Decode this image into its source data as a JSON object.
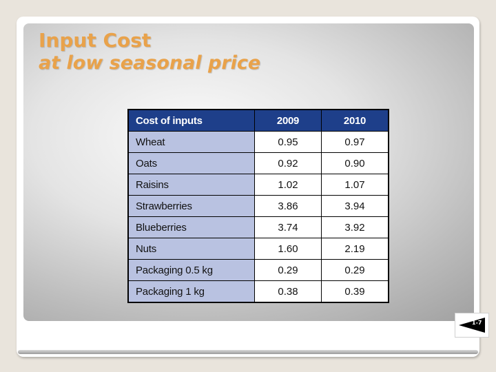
{
  "slide": {
    "title_line1": "Input Cost",
    "title_line2": "at low seasonal price",
    "page_number": "1-7"
  },
  "table": {
    "headers": [
      "Cost of inputs",
      "2009",
      "2010"
    ],
    "rows": [
      {
        "item": "Wheat",
        "y2009": "0.95",
        "y2010": "0.97"
      },
      {
        "item": "Oats",
        "y2009": "0.92",
        "y2010": "0.90"
      },
      {
        "item": "Raisins",
        "y2009": "1.02",
        "y2010": "1.07"
      },
      {
        "item": "Strawberries",
        "y2009": "3.86",
        "y2010": "3.94"
      },
      {
        "item": "Blueberries",
        "y2009": "3.74",
        "y2010": "3.92"
      },
      {
        "item": "Nuts",
        "y2009": "1.60",
        "y2010": "2.19"
      },
      {
        "item": "Packaging 0.5 kg",
        "y2009": "0.29",
        "y2010": "0.29"
      },
      {
        "item": "Packaging 1 kg",
        "y2009": "0.38",
        "y2010": "0.39"
      }
    ]
  },
  "colors": {
    "title": "#e9a24a",
    "header_bg": "#1e3f8a",
    "item_cell_bg": "#b9c2e1"
  }
}
